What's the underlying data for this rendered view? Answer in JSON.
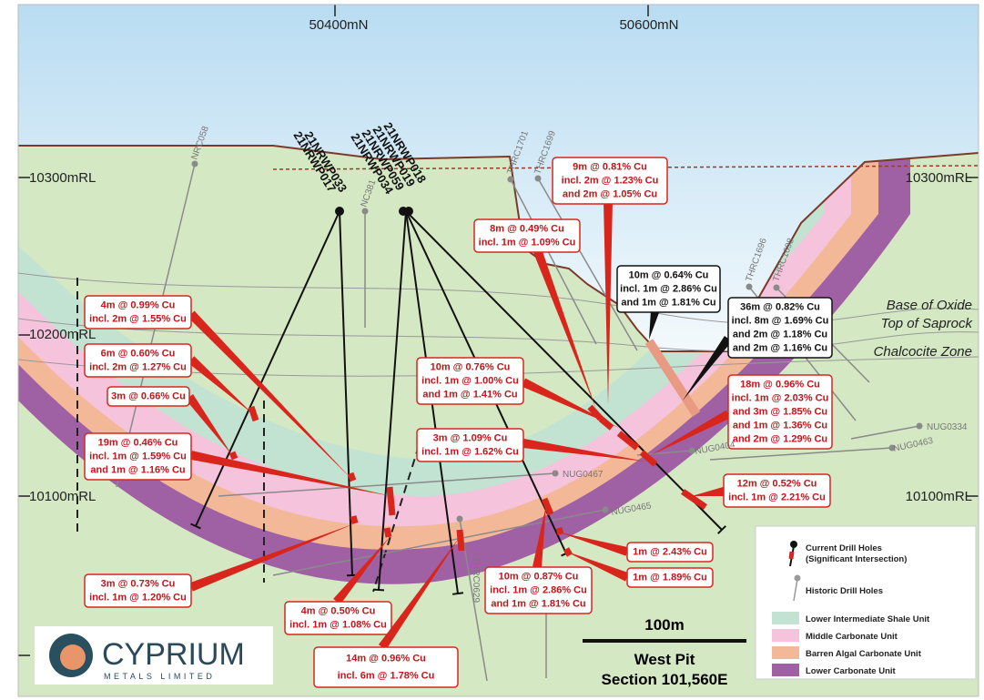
{
  "grid_labels": {
    "northings": [
      "50400mN",
      "50600mN"
    ],
    "rl_left": [
      "10300mRL",
      "10200mRL",
      "10100mRL"
    ],
    "rl_right": [
      "10300mRL",
      "10100mRL"
    ]
  },
  "zone_labels": [
    "Base of Oxide",
    "Top of Saprock",
    "Chalcocite Zone"
  ],
  "current_holes": [
    "21NRWP017",
    "21NRWP033",
    "21NRWP034",
    "21NRWP059",
    "21NRWP019",
    "21NRWP018"
  ],
  "historic_holes": [
    "NRC058",
    "NC381",
    "THRC1701",
    "THRC1699",
    "THRC1696",
    "THRC1698",
    "NUG0467",
    "NUG0465",
    "NUG0404",
    "NUG0334",
    "NUG0463",
    "THRC0629"
  ],
  "intersections": [
    {
      "lines": [
        "9m @ 0.81% Cu",
        "incl. 2m @ 1.23% Cu",
        "and 2m @ 1.05% Cu"
      ]
    },
    {
      "lines": [
        "8m @ 0.49% Cu",
        "incl. 1m @ 1.09% Cu"
      ]
    },
    {
      "lines": [
        "10m @ 0.64% Cu",
        "incl. 1m @ 2.86% Cu",
        "and 1m @ 1.81% Cu"
      ]
    },
    {
      "lines": [
        "36m @ 0.82% Cu",
        "incl. 8m @ 1.69% Cu",
        "and 2m @ 1.18% Cu",
        "and 2m @ 1.16% Cu"
      ]
    },
    {
      "lines": [
        "4m @ 0.99% Cu",
        "incl. 2m @ 1.55% Cu"
      ]
    },
    {
      "lines": [
        "6m @ 0.60% Cu",
        "incl. 2m @ 1.27% Cu"
      ]
    },
    {
      "lines": [
        "3m @ 0.66% Cu"
      ]
    },
    {
      "lines": [
        "10m @ 0.76% Cu",
        "incl. 1m @ 1.00% Cu",
        "and 1m @ 1.41% Cu"
      ]
    },
    {
      "lines": [
        "18m @ 0.96% Cu",
        "incl. 1m @ 2.03% Cu",
        "and 3m @ 1.85% Cu",
        "and 1m @ 1.36% Cu",
        "and 2m @ 1.29% Cu"
      ]
    },
    {
      "lines": [
        "19m @ 0.46% Cu",
        "incl. 1m @ 1.59% Cu",
        "and 1m @ 1.16% Cu"
      ]
    },
    {
      "lines": [
        "3m @ 1.09% Cu",
        "incl. 1m @ 1.62% Cu"
      ]
    },
    {
      "lines": [
        "12m @ 0.52% Cu",
        "incl. 1m @ 2.21% Cu"
      ]
    },
    {
      "lines": [
        "1m @ 2.43% Cu"
      ]
    },
    {
      "lines": [
        "1m @ 1.89% Cu"
      ]
    },
    {
      "lines": [
        "3m @ 0.73% Cu",
        "incl. 1m @ 1.20% Cu"
      ]
    },
    {
      "lines": [
        "10m @ 0.87% Cu",
        "incl. 1m @ 2.86% Cu",
        "and 1m @ 1.81% Cu"
      ]
    },
    {
      "lines": [
        "4m @ 0.50% Cu",
        "incl. 1m @ 1.08% Cu"
      ]
    },
    {
      "lines": [
        "14m @ 0.96% Cu",
        "incl. 6m @ 1.78% Cu"
      ]
    }
  ],
  "legend": {
    "current": "Current Drill Holes",
    "current_note": "(Significant Intersection)",
    "historic": "Historic Drill Holes",
    "units": [
      "Lower Intermediate Shale Unit",
      "Middle Carbonate Unit",
      "Barren Algal Carbonate Unit",
      "Lower Carbonate Unit"
    ]
  },
  "scale": "100m",
  "title": [
    "West Pit",
    "Section 101,560E"
  ],
  "logo": {
    "name": "CYPRIUM",
    "tagline": "METALS LIMITED"
  }
}
